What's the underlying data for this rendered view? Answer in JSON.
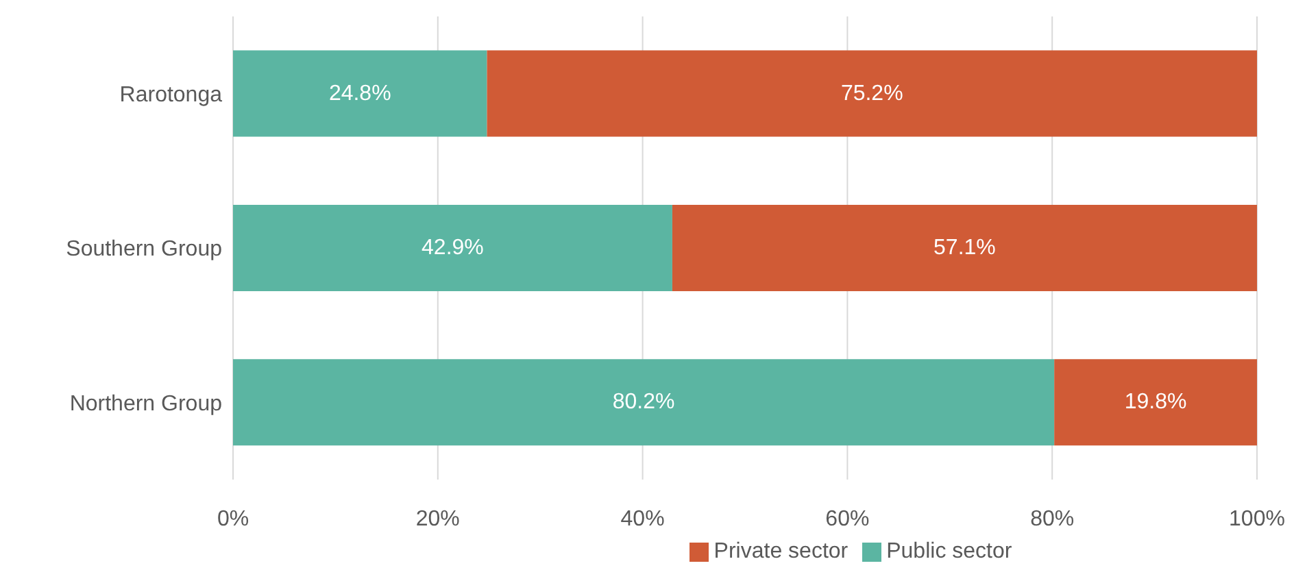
{
  "chart_data": {
    "type": "bar",
    "orientation": "horizontal",
    "stacked": true,
    "categories": [
      "Rarotonga",
      "Southern Group",
      "Northern Group"
    ],
    "series": [
      {
        "name": "Public sector",
        "color": "#5bb5a2",
        "values": [
          24.8,
          42.9,
          80.2
        ],
        "value_labels": [
          "24.8%",
          "42.9%",
          "80.2%"
        ]
      },
      {
        "name": "Private sector",
        "color": "#d05b36",
        "values": [
          75.2,
          57.1,
          19.8
        ],
        "value_labels": [
          "75.2%",
          "57.1%",
          "19.8%"
        ]
      }
    ],
    "xlim": [
      0,
      100
    ],
    "xticks": [
      {
        "value": 0,
        "label": "0%"
      },
      {
        "value": 20,
        "label": "20%"
      },
      {
        "value": 40,
        "label": "40%"
      },
      {
        "value": 60,
        "label": "60%"
      },
      {
        "value": 80,
        "label": "80%"
      },
      {
        "value": 100,
        "label": "100%"
      }
    ],
    "grid": "x",
    "legend": "bottom"
  }
}
